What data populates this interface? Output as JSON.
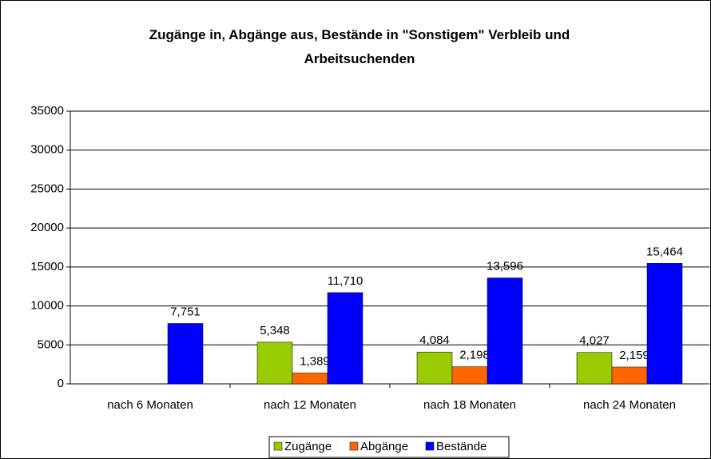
{
  "chart_data": {
    "type": "bar",
    "title": "Zugänge in, Abgänge aus, Bestände in \"Sonstigem\" Verbleib und Arbeitsuchenden",
    "categories": [
      "nach 6 Monaten",
      "nach 12 Monaten",
      "nach 18 Monaten",
      "nach 24 Monaten"
    ],
    "series": [
      {
        "name": "Zugänge",
        "color": "#99cc00",
        "values": [
          null,
          5348,
          4084,
          4027
        ],
        "value_labels": [
          null,
          "5,348",
          "4,084",
          "4,027"
        ]
      },
      {
        "name": "Abgänge",
        "color": "#ff6600",
        "values": [
          null,
          1389,
          2198,
          2159
        ],
        "value_labels": [
          null,
          "1,389",
          "2,198",
          "2,159"
        ]
      },
      {
        "name": "Bestände",
        "color": "#0000ff",
        "values": [
          7751,
          11710,
          13596,
          15464
        ],
        "value_labels": [
          "7,751",
          "11,710",
          "13,596",
          "15,464"
        ]
      }
    ],
    "ylim": [
      0,
      35000
    ],
    "yticks": [
      0,
      5000,
      10000,
      15000,
      20000,
      25000,
      30000,
      35000
    ],
    "grid": true,
    "legend": "bottom"
  }
}
